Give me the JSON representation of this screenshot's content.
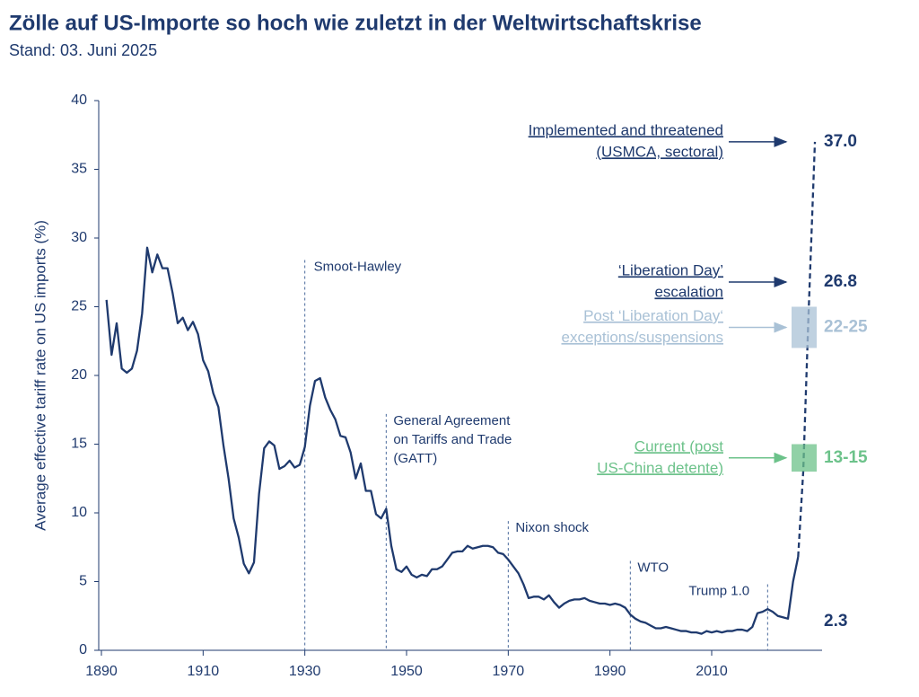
{
  "chart_data": {
    "type": "line",
    "title": "Zölle auf US-Importe so hoch wie zuletzt in der Weltwirtschaftskrise",
    "subtitle": "Stand: 03. Juni 2025",
    "y_label": "Average effective tariff rate on US imports (%)",
    "xlim": [
      1890,
      2031
    ],
    "ylim": [
      0,
      40
    ],
    "xticks": [
      1890,
      1910,
      1930,
      1950,
      1970,
      1990,
      2010
    ],
    "yticks": [
      0,
      5,
      10,
      15,
      20,
      25,
      30,
      35,
      40
    ],
    "series": [
      {
        "color": "#1f3a6e",
        "style": "solid",
        "x": [
          1891,
          1892,
          1893,
          1894,
          1895,
          1896,
          1897,
          1898,
          1899,
          1900,
          1901,
          1902,
          1903,
          1904,
          1905,
          1906,
          1907,
          1908,
          1909,
          1910,
          1911,
          1912,
          1913,
          1914,
          1915,
          1916,
          1917,
          1918,
          1919,
          1920,
          1921,
          1922,
          1923,
          1924,
          1925,
          1926,
          1927,
          1928,
          1929,
          1930,
          1931,
          1932,
          1933,
          1934,
          1935,
          1936,
          1937,
          1938,
          1939,
          1940,
          1941,
          1942,
          1943,
          1944,
          1945,
          1946,
          1947,
          1948,
          1949,
          1950,
          1951,
          1952,
          1953,
          1954,
          1955,
          1956,
          1957,
          1958,
          1959,
          1960,
          1961,
          1962,
          1963,
          1964,
          1965,
          1966,
          1967,
          1968,
          1969,
          1970,
          1971,
          1972,
          1973,
          1974,
          1975,
          1976,
          1977,
          1978,
          1979,
          1980,
          1981,
          1982,
          1983,
          1984,
          1985,
          1986,
          1987,
          1988,
          1989,
          1990,
          1991,
          1992,
          1993,
          1994,
          1995,
          1996,
          1997,
          1998,
          1999,
          2000,
          2001,
          2002,
          2003,
          2004,
          2005,
          2006,
          2007,
          2008,
          2009,
          2010,
          2011,
          2012,
          2013,
          2014,
          2015,
          2016,
          2017,
          2018,
          2019,
          2020,
          2021,
          2022,
          2023,
          2024,
          2025,
          2026,
          2027
        ],
        "values": [
          25.5,
          21.5,
          23.8,
          20.5,
          20.2,
          20.5,
          21.8,
          24.5,
          29.3,
          27.5,
          28.8,
          27.8,
          27.8,
          26.0,
          23.8,
          24.2,
          23.3,
          23.9,
          23.0,
          21.1,
          20.3,
          18.7,
          17.7,
          14.9,
          12.5,
          9.6,
          8.2,
          6.3,
          5.6,
          6.4,
          11.4,
          14.7,
          15.2,
          14.9,
          13.2,
          13.4,
          13.8,
          13.3,
          13.5,
          14.8,
          17.8,
          19.6,
          19.8,
          18.4,
          17.5,
          16.8,
          15.6,
          15.5,
          14.4,
          12.5,
          13.6,
          11.6,
          11.6,
          9.9,
          9.6,
          10.3,
          7.6,
          5.9,
          5.7,
          6.1,
          5.5,
          5.3,
          5.5,
          5.4,
          5.9,
          5.9,
          6.1,
          6.6,
          7.1,
          7.2,
          7.2,
          7.6,
          7.4,
          7.5,
          7.6,
          7.6,
          7.5,
          7.1,
          7.0,
          6.6,
          6.1,
          5.6,
          4.8,
          3.8,
          3.9,
          3.9,
          3.7,
          4.0,
          3.5,
          3.1,
          3.4,
          3.6,
          3.7,
          3.7,
          3.8,
          3.6,
          3.5,
          3.4,
          3.4,
          3.3,
          3.4,
          3.3,
          3.1,
          2.6,
          2.3,
          2.1,
          2.0,
          1.8,
          1.6,
          1.6,
          1.7,
          1.6,
          1.5,
          1.4,
          1.4,
          1.3,
          1.3,
          1.2,
          1.4,
          1.3,
          1.4,
          1.3,
          1.4,
          1.4,
          1.5,
          1.5,
          1.4,
          1.7,
          2.7,
          2.8,
          3.0,
          2.8,
          2.5,
          2.4,
          2.3,
          5.0,
          6.8
        ]
      },
      {
        "color": "#1f3a6e",
        "style": "dashed",
        "x": [
          2027,
          2028,
          2029,
          2030.3
        ],
        "values": [
          6.8,
          13,
          24,
          37
        ]
      }
    ],
    "events": [
      {
        "x": 1930,
        "lines": [
          "Smoot-Hawley"
        ]
      },
      {
        "x": 1946,
        "lines": [
          "General Agreement",
          "on Tariffs and Trade",
          "(GATT)"
        ]
      },
      {
        "x": 1970,
        "lines": [
          "Nixon shock"
        ]
      },
      {
        "x": 1994,
        "lines": [
          "WTO"
        ]
      },
      {
        "x": 2021,
        "lines": [
          "Trump 1.0"
        ]
      }
    ],
    "annotations": [
      {
        "lines": [
          "Implemented and threatened",
          "(USMCA, sectoral)"
        ],
        "value": {
          "value": 37,
          "label": "37.0"
        },
        "color": "#1f3a6e"
      },
      {
        "lines": [
          "‘Liberation Day’",
          "escalation"
        ],
        "value": 26.8,
        "color": "#1f3a6e"
      },
      {
        "lines": [
          "Post ‘Liberation Day‘",
          "exceptions/suspensions"
        ],
        "low": 22,
        "high": 25,
        "label": "22-25",
        "color": "#a9c1d6"
      },
      {
        "lines": [
          "Current (post",
          "US-China detente)"
        ],
        "low": 13,
        "high": 15,
        "label": "13-15",
        "color": "#6cc28a"
      },
      {
        "value": 2.3,
        "color": "#1f3a6e"
      }
    ]
  }
}
